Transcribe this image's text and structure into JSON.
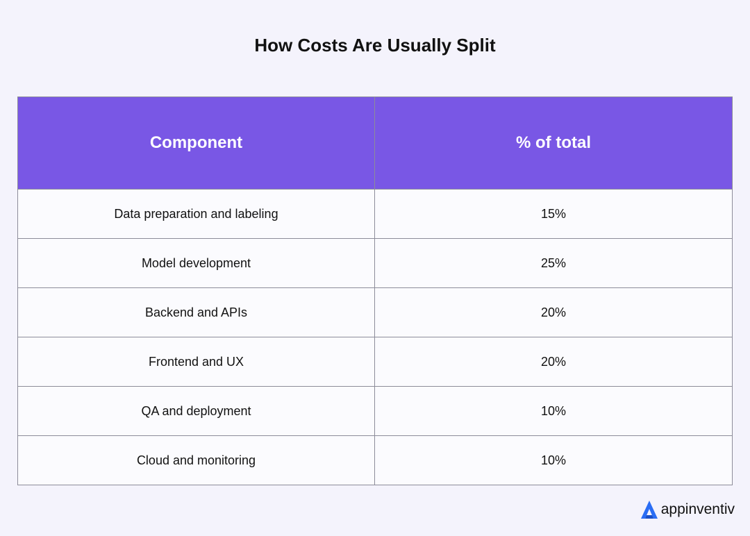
{
  "header": {
    "title": "How Costs Are Usually Split"
  },
  "table": {
    "columns": [
      "Component",
      "% of total"
    ],
    "rows": [
      [
        "Data preparation and labeling",
        "15%"
      ],
      [
        "Model development",
        "25%"
      ],
      [
        "Backend and APIs",
        "20%"
      ],
      [
        "Frontend and UX",
        "20%"
      ],
      [
        "QA and deployment",
        "10%"
      ],
      [
        "Cloud and monitoring",
        "10%"
      ]
    ]
  },
  "footer": {
    "logo": "appinventiv"
  }
}
